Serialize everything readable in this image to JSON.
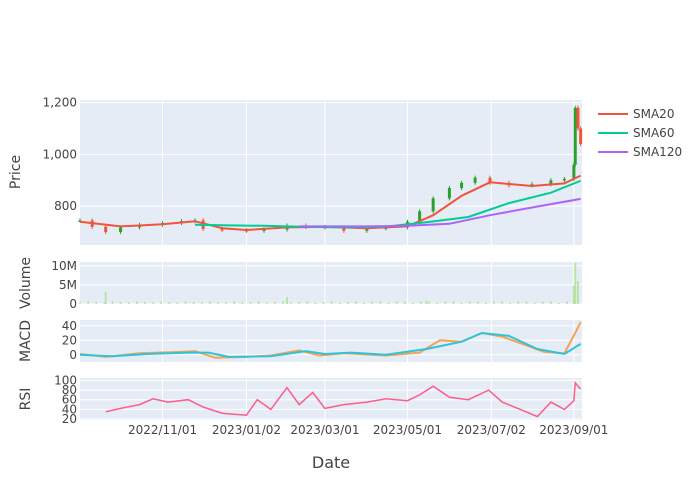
{
  "chart_data": {
    "type": "line",
    "xlabel": "Date",
    "x_ticks": [
      "2022/11/01",
      "2023/01/02",
      "2023/03/01",
      "2023/05/01",
      "2023/07/02",
      "2023/09/01"
    ],
    "x_range": [
      "2022-09-01",
      "2023-09-07"
    ],
    "grid": true,
    "legend_position": "top-right",
    "colors": {
      "plot_bg": "#e5ecf6",
      "grid": "#ffffff",
      "up_candle": "#2ca02c",
      "down_candle": "#ef553b",
      "sma20": "#ef553b",
      "sma60": "#00cc96",
      "sma120": "#ab63fa",
      "volume": "#b7e4a3",
      "macd": "#f4a259",
      "signal": "#2ec4d6",
      "rsi": "#ff5c8a"
    },
    "panels": [
      {
        "id": "price",
        "ylabel": "Price",
        "ylim": [
          650,
          1210
        ],
        "yticks": [
          800,
          1000,
          1200
        ],
        "ytick_labels": [
          "800",
          "1,000",
          "1,200"
        ],
        "candles": [
          [
            "2022-09-01",
            745
          ],
          [
            "2022-09-10",
            720
          ],
          [
            "2022-09-20",
            700
          ],
          [
            "2022-10-01",
            718
          ],
          [
            "2022-10-15",
            728
          ],
          [
            "2022-11-01",
            735
          ],
          [
            "2022-11-15",
            742
          ],
          [
            "2022-11-25",
            745
          ],
          [
            "2022-12-01",
            712
          ],
          [
            "2022-12-15",
            708
          ],
          [
            "2023-01-02",
            705
          ],
          [
            "2023-01-15",
            710
          ],
          [
            "2023-02-01",
            725
          ],
          [
            "2023-02-15",
            720
          ],
          [
            "2023-03-01",
            718
          ],
          [
            "2023-03-15",
            705
          ],
          [
            "2023-04-01",
            715
          ],
          [
            "2023-04-15",
            718
          ],
          [
            "2023-05-01",
            740
          ],
          [
            "2023-05-10",
            780
          ],
          [
            "2023-05-20",
            830
          ],
          [
            "2023-06-01",
            870
          ],
          [
            "2023-06-10",
            890
          ],
          [
            "2023-06-20",
            910
          ],
          [
            "2023-07-01",
            890
          ],
          [
            "2023-07-15",
            880
          ],
          [
            "2023-08-01",
            885
          ],
          [
            "2023-08-15",
            900
          ],
          [
            "2023-08-25",
            905
          ],
          [
            "2023-09-01",
            960
          ],
          [
            "2023-09-02",
            1180
          ],
          [
            "2023-09-04",
            1100
          ],
          [
            "2023-09-06",
            1040
          ]
        ],
        "series": [
          {
            "name": "SMA20",
            "x": [
              "2022-09-01",
              "2022-10-01",
              "2022-11-01",
              "2022-11-25",
              "2022-12-15",
              "2023-01-02",
              "2023-02-01",
              "2023-03-01",
              "2023-04-01",
              "2023-05-01",
              "2023-05-20",
              "2023-06-10",
              "2023-07-01",
              "2023-08-01",
              "2023-08-25",
              "2023-09-06"
            ],
            "values": [
              740,
              722,
              730,
              742,
              715,
              708,
              718,
              720,
              715,
              722,
              765,
              840,
              892,
              878,
              888,
              918
            ]
          },
          {
            "name": "SMA60",
            "x": [
              "2022-11-25",
              "2022-12-15",
              "2023-01-15",
              "2023-02-15",
              "2023-03-15",
              "2023-04-15",
              "2023-05-15",
              "2023-06-15",
              "2023-07-15",
              "2023-08-15",
              "2023-09-06"
            ],
            "values": [
              728,
              726,
              724,
              720,
              718,
              721,
              738,
              758,
              812,
              852,
              898
            ]
          },
          {
            "name": "SMA120",
            "x": [
              "2023-02-10",
              "2023-03-01",
              "2023-04-01",
              "2023-05-01",
              "2023-06-01",
              "2023-07-01",
              "2023-08-01",
              "2023-09-06"
            ],
            "values": [
              722,
              722,
              722,
              724,
              732,
              765,
              795,
              828
            ]
          }
        ]
      },
      {
        "id": "volume",
        "ylabel": "Volume",
        "ylim": [
          0,
          11000000
        ],
        "yticks": [
          0,
          5000000,
          10000000
        ],
        "ytick_labels": [
          "0",
          "5M",
          "10M"
        ],
        "spikes": [
          [
            "2022-09-20",
            3200000
          ],
          [
            "2023-02-01",
            1800000
          ],
          [
            "2023-05-15",
            900000
          ],
          [
            "2023-09-01",
            4800000
          ],
          [
            "2023-09-02",
            10800000
          ],
          [
            "2023-09-04",
            6000000
          ]
        ],
        "baseline": 500000
      },
      {
        "id": "macd",
        "ylabel": "MACD",
        "ylim": [
          -10,
          48
        ],
        "yticks": [
          0,
          20,
          40
        ],
        "ytick_labels": [
          "0",
          "20",
          "40"
        ],
        "series": [
          {
            "name": "MACD",
            "x": [
              "2022-09-01",
              "2022-09-20",
              "2022-10-15",
              "2022-11-15",
              "2022-11-25",
              "2022-12-10",
              "2023-01-02",
              "2023-01-20",
              "2023-02-10",
              "2023-02-25",
              "2023-03-15",
              "2023-04-15",
              "2023-05-10",
              "2023-05-25",
              "2023-06-10",
              "2023-06-25",
              "2023-07-10",
              "2023-07-25",
              "2023-08-10",
              "2023-08-25",
              "2023-09-02",
              "2023-09-06"
            ],
            "values": [
              1,
              -3,
              2,
              4,
              5,
              -4,
              -3,
              -1,
              6,
              -1,
              2,
              -1,
              3,
              20,
              18,
              30,
              25,
              15,
              4,
              2,
              30,
              45
            ]
          },
          {
            "name": "Signal",
            "x": [
              "2022-09-01",
              "2022-09-25",
              "2022-10-20",
              "2022-11-20",
              "2022-12-05",
              "2022-12-20",
              "2023-01-20",
              "2023-02-15",
              "2023-03-01",
              "2023-03-20",
              "2023-04-15",
              "2023-05-15",
              "2023-06-10",
              "2023-06-25",
              "2023-07-15",
              "2023-08-05",
              "2023-08-25",
              "2023-09-06"
            ],
            "values": [
              0,
              -2,
              1,
              3,
              3,
              -3,
              -2,
              5,
              1,
              3,
              0,
              8,
              18,
              30,
              26,
              8,
              1,
              15
            ]
          }
        ]
      },
      {
        "id": "rsi",
        "ylabel": "RSI",
        "ylim": [
          18,
          105
        ],
        "yticks": [
          20,
          40,
          60,
          80,
          100
        ],
        "ytick_labels": [
          "20",
          "40",
          "60",
          "80",
          "100"
        ],
        "series": [
          {
            "name": "RSI",
            "x": [
              "2022-09-20",
              "2022-10-01",
              "2022-10-15",
              "2022-10-25",
              "2022-11-05",
              "2022-11-20",
              "2022-12-01",
              "2022-12-15",
              "2023-01-02",
              "2023-01-10",
              "2023-01-20",
              "2023-02-01",
              "2023-02-10",
              "2023-02-20",
              "2023-03-01",
              "2023-03-15",
              "2023-04-01",
              "2023-04-15",
              "2023-05-01",
              "2023-05-10",
              "2023-05-20",
              "2023-06-01",
              "2023-06-15",
              "2023-06-30",
              "2023-07-10",
              "2023-07-25",
              "2023-08-05",
              "2023-08-15",
              "2023-08-25",
              "2023-09-01",
              "2023-09-02",
              "2023-09-06"
            ],
            "values": [
              35,
              42,
              50,
              62,
              55,
              60,
              45,
              32,
              28,
              60,
              40,
              85,
              50,
              75,
              42,
              50,
              55,
              62,
              58,
              70,
              88,
              65,
              60,
              80,
              55,
              38,
              25,
              55,
              40,
              58,
              95,
              82
            ]
          }
        ]
      }
    ]
  }
}
